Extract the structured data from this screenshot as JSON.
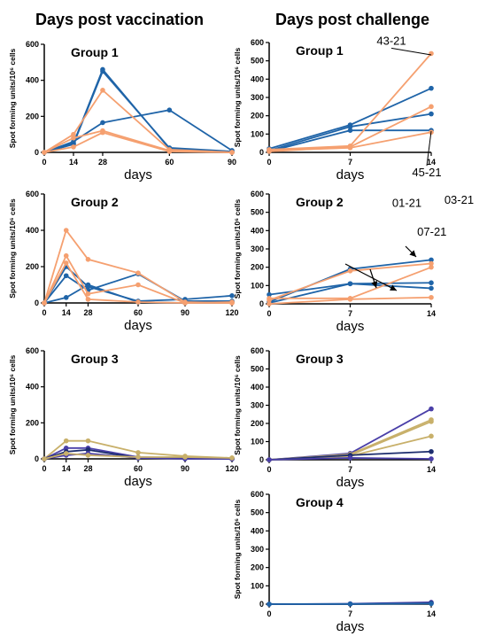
{
  "headers": {
    "left": "Days post vaccination",
    "right": "Days post challenge"
  },
  "colors": {
    "blue": "#1f64a8",
    "orange": "#f5a070",
    "purple": "#4a3fa8",
    "tan": "#c8b06a",
    "navy": "#1c2d6e"
  },
  "chart_data": [
    {
      "type": "line",
      "title": "Group 1",
      "xlabel": "days",
      "ylabel": "Spot forming units/10⁶ cells",
      "x": [
        0,
        14,
        28,
        60,
        90
      ],
      "xticks": [
        "0",
        "14",
        "28",
        "60",
        "90"
      ],
      "ylim": [
        0,
        600
      ],
      "yticks": [
        0,
        200,
        400,
        600
      ],
      "series": [
        {
          "color": "blue",
          "values": [
            0,
            50,
            460,
            20,
            0
          ]
        },
        {
          "color": "blue",
          "values": [
            0,
            45,
            450,
            25,
            5
          ]
        },
        {
          "color": "blue",
          "values": [
            0,
            60,
            165,
            235,
            10
          ]
        },
        {
          "color": "orange",
          "values": [
            0,
            100,
            345,
            15,
            0
          ]
        },
        {
          "color": "orange",
          "values": [
            0,
            80,
            120,
            10,
            0
          ]
        },
        {
          "color": "orange",
          "values": [
            0,
            30,
            110,
            5,
            0
          ]
        }
      ]
    },
    {
      "type": "line",
      "title": "Group 1",
      "xlabel": "days",
      "ylabel": "Spot forming units/10⁶ cells",
      "x": [
        0,
        7,
        14
      ],
      "xticks": [
        "0",
        "7",
        "14"
      ],
      "ylim": [
        0,
        600
      ],
      "yticks": [
        0,
        100,
        200,
        300,
        400,
        500,
        600
      ],
      "series": [
        {
          "color": "blue",
          "values": [
            20,
            150,
            350
          ]
        },
        {
          "color": "blue",
          "values": [
            10,
            140,
            210
          ]
        },
        {
          "color": "blue",
          "values": [
            5,
            120,
            120
          ]
        },
        {
          "color": "orange",
          "values": [
            15,
            35,
            540
          ]
        },
        {
          "color": "orange",
          "values": [
            5,
            30,
            250
          ]
        },
        {
          "color": "orange",
          "values": [
            10,
            25,
            110
          ]
        }
      ],
      "annotations": [
        {
          "text": "43-21",
          "x": 14,
          "y": 540
        },
        {
          "text": "45-21",
          "x": 14,
          "y": 120
        }
      ]
    },
    {
      "type": "line",
      "title": "Group 2",
      "xlabel": "days",
      "ylabel": "Spot forming units/10⁶ cells",
      "x": [
        0,
        14,
        28,
        60,
        90,
        120
      ],
      "xticks": [
        "0",
        "14",
        "28",
        "60",
        "90",
        "120"
      ],
      "ylim": [
        0,
        600
      ],
      "yticks": [
        0,
        200,
        400,
        600
      ],
      "series": [
        {
          "color": "blue",
          "values": [
            0,
            200,
            90,
            10,
            20,
            40
          ]
        },
        {
          "color": "blue",
          "values": [
            0,
            150,
            70,
            160,
            10,
            10
          ]
        },
        {
          "color": "blue",
          "values": [
            0,
            30,
            100,
            5,
            0,
            5
          ]
        },
        {
          "color": "orange",
          "values": [
            0,
            400,
            240,
            165,
            5,
            0
          ]
        },
        {
          "color": "orange",
          "values": [
            0,
            260,
            50,
            100,
            0,
            5
          ]
        },
        {
          "color": "orange",
          "values": [
            0,
            220,
            20,
            5,
            0,
            0
          ]
        }
      ]
    },
    {
      "type": "line",
      "title": "Group 2",
      "xlabel": "days",
      "ylabel": "Spot forming units/10⁶ cells",
      "x": [
        0,
        7,
        14
      ],
      "xticks": [
        "0",
        "7",
        "14"
      ],
      "ylim": [
        0,
        600
      ],
      "yticks": [
        0,
        100,
        200,
        300,
        400,
        500,
        600
      ],
      "series": [
        {
          "color": "blue",
          "values": [
            10,
            190,
            240
          ]
        },
        {
          "color": "blue",
          "values": [
            5,
            110,
            115
          ]
        },
        {
          "color": "blue",
          "values": [
            50,
            110,
            85
          ]
        },
        {
          "color": "orange",
          "values": [
            20,
            180,
            220
          ]
        },
        {
          "color": "orange",
          "values": [
            30,
            30,
            200
          ]
        },
        {
          "color": "orange",
          "values": [
            0,
            25,
            35
          ]
        }
      ],
      "annotations": [
        {
          "text": "01-21",
          "x": 7,
          "y": 225
        },
        {
          "text": "07-21",
          "x": 11,
          "y": 180
        },
        {
          "text": "03-21",
          "x": 13.5,
          "y": 280
        }
      ]
    },
    {
      "type": "line",
      "title": "Group 3",
      "xlabel": "days",
      "ylabel": "Spot forming units/10⁶ cells",
      "x": [
        0,
        14,
        28,
        60,
        90,
        120
      ],
      "xticks": [
        "0",
        "14",
        "28",
        "60",
        "90",
        "120"
      ],
      "ylim": [
        0,
        600
      ],
      "yticks": [
        0,
        200,
        400,
        600
      ],
      "series": [
        {
          "color": "tan",
          "values": [
            0,
            100,
            100,
            35,
            15,
            5
          ]
        },
        {
          "color": "purple",
          "values": [
            0,
            60,
            60,
            10,
            5,
            0
          ]
        },
        {
          "color": "navy",
          "values": [
            0,
            40,
            50,
            5,
            5,
            0
          ]
        },
        {
          "color": "purple",
          "values": [
            0,
            20,
            30,
            5,
            0,
            0
          ]
        },
        {
          "color": "tan",
          "values": [
            0,
            30,
            20,
            10,
            10,
            5
          ]
        }
      ]
    },
    {
      "type": "line",
      "title": "Group 3",
      "xlabel": "days",
      "ylabel": "Spot forming units/10⁶ cells",
      "x": [
        0,
        7,
        14
      ],
      "xticks": [
        "0",
        "7",
        "14"
      ],
      "ylim": [
        0,
        600
      ],
      "yticks": [
        0,
        100,
        200,
        300,
        400,
        500,
        600
      ],
      "series": [
        {
          "color": "purple",
          "values": [
            0,
            35,
            280
          ]
        },
        {
          "color": "tan",
          "values": [
            0,
            30,
            220
          ]
        },
        {
          "color": "tan",
          "values": [
            0,
            25,
            210
          ]
        },
        {
          "color": "tan",
          "values": [
            0,
            20,
            130
          ]
        },
        {
          "color": "navy",
          "values": [
            0,
            25,
            45
          ]
        },
        {
          "color": "purple",
          "values": [
            0,
            10,
            5
          ]
        }
      ]
    },
    {
      "type": "line",
      "title": "Group 4",
      "xlabel": "days",
      "ylabel": "Spot forming units/10⁶ cells",
      "x": [
        0,
        7,
        14
      ],
      "xticks": [
        "0",
        "7",
        "14"
      ],
      "ylim": [
        0,
        600
      ],
      "yticks": [
        0,
        100,
        200,
        300,
        400,
        500,
        600
      ],
      "series": [
        {
          "color": "purple",
          "values": [
            0,
            2,
            10
          ]
        },
        {
          "color": "navy",
          "values": [
            0,
            0,
            5
          ]
        },
        {
          "color": "blue",
          "values": [
            0,
            1,
            3
          ]
        }
      ]
    }
  ]
}
